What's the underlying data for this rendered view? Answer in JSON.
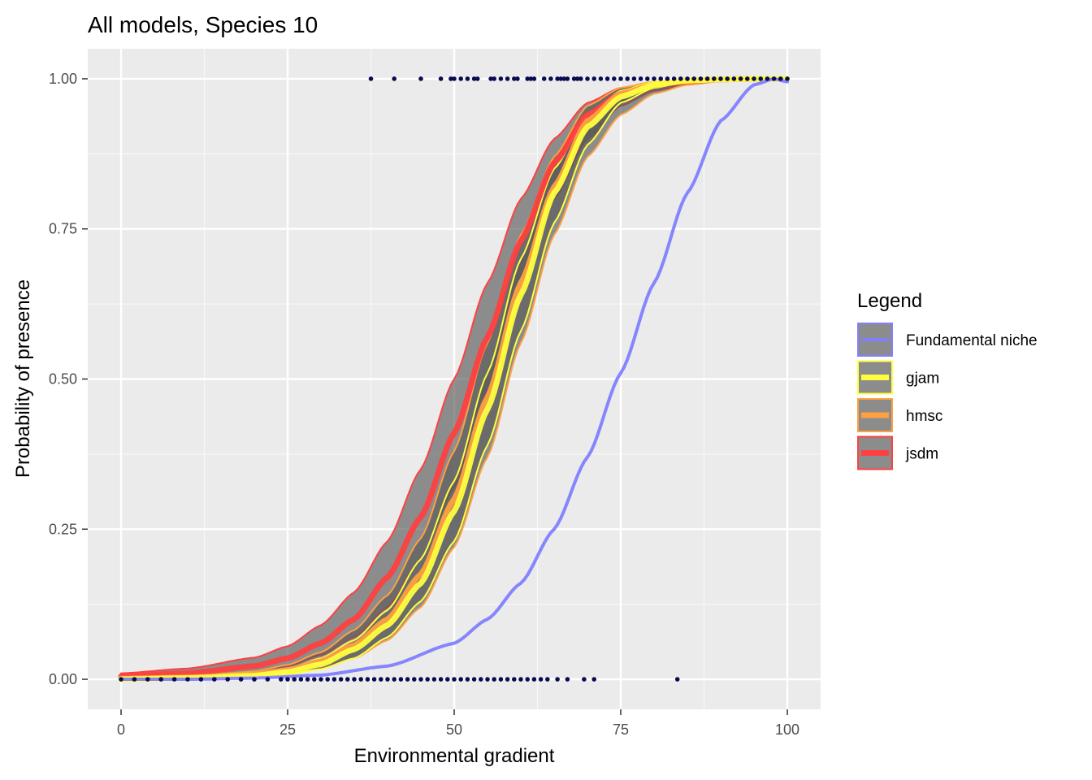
{
  "chart_data": {
    "type": "line",
    "title": "All models, Species 10",
    "xlabel": "Environmental gradient",
    "ylabel": "Probability of presence",
    "xlim": [
      -5,
      105
    ],
    "ylim": [
      -0.05,
      1.05
    ],
    "x_ticks": [
      0,
      25,
      50,
      75,
      100
    ],
    "x_tick_labels": [
      "0",
      "25",
      "50",
      "75",
      "100"
    ],
    "y_ticks": [
      0,
      0.25,
      0.5,
      0.75,
      1.0
    ],
    "y_tick_labels": [
      "0.00",
      "0.25",
      "0.50",
      "0.75",
      "1.00"
    ],
    "grid": true,
    "legend": {
      "title": "Legend",
      "placement": "right",
      "entries": [
        "Fundamental niche",
        "gjam",
        "hmsc",
        "jsdm"
      ]
    },
    "series": [
      {
        "name": "Fundamental niche",
        "color": "#8080FF",
        "ribbon": false,
        "x": [
          0,
          10,
          20,
          30,
          40,
          50,
          55,
          60,
          65,
          70,
          75,
          80,
          85,
          90,
          95,
          98,
          100
        ],
        "y": [
          0.0,
          0.0,
          0.002,
          0.007,
          0.022,
          0.06,
          0.1,
          0.16,
          0.25,
          0.37,
          0.51,
          0.66,
          0.81,
          0.93,
          0.99,
          1.0,
          0.995
        ]
      },
      {
        "name": "gjam",
        "color": "#FFFF40",
        "ribbon": true,
        "x": [
          0,
          10,
          20,
          25,
          30,
          35,
          40,
          45,
          50,
          55,
          60,
          65,
          70,
          75,
          80,
          85,
          90,
          95,
          100
        ],
        "y": [
          0.0,
          0.002,
          0.006,
          0.012,
          0.025,
          0.05,
          0.09,
          0.16,
          0.28,
          0.45,
          0.64,
          0.81,
          0.92,
          0.97,
          0.99,
          0.997,
          0.999,
          1.0,
          1.0
        ],
        "lower": [
          0.0,
          0.001,
          0.004,
          0.008,
          0.017,
          0.035,
          0.07,
          0.13,
          0.23,
          0.39,
          0.58,
          0.76,
          0.89,
          0.96,
          0.985,
          0.995,
          0.998,
          0.999,
          1.0
        ],
        "upper": [
          0.001,
          0.003,
          0.009,
          0.017,
          0.035,
          0.065,
          0.115,
          0.2,
          0.33,
          0.51,
          0.7,
          0.85,
          0.94,
          0.98,
          0.995,
          0.999,
          1.0,
          1.0,
          1.0
        ]
      },
      {
        "name": "hmsc",
        "color": "#FFA040",
        "ribbon": true,
        "x": [
          0,
          10,
          20,
          25,
          30,
          35,
          40,
          45,
          50,
          55,
          60,
          65,
          70,
          75,
          80,
          85,
          90,
          95,
          100
        ],
        "y": [
          0.001,
          0.003,
          0.008,
          0.015,
          0.03,
          0.057,
          0.1,
          0.175,
          0.3,
          0.47,
          0.66,
          0.82,
          0.93,
          0.975,
          0.99,
          0.997,
          0.999,
          1.0,
          1.0
        ],
        "lower": [
          0.0,
          0.001,
          0.004,
          0.009,
          0.018,
          0.035,
          0.065,
          0.12,
          0.22,
          0.37,
          0.56,
          0.74,
          0.87,
          0.94,
          0.975,
          0.99,
          0.996,
          0.999,
          1.0
        ],
        "upper": [
          0.002,
          0.005,
          0.013,
          0.024,
          0.045,
          0.082,
          0.14,
          0.235,
          0.38,
          0.56,
          0.74,
          0.87,
          0.955,
          0.985,
          0.995,
          0.999,
          1.0,
          1.0,
          1.0
        ]
      },
      {
        "name": "jsdm",
        "color": "#FF4040",
        "ribbon": true,
        "x": [
          0,
          10,
          20,
          25,
          30,
          35,
          40,
          45,
          50,
          55,
          60,
          65,
          70,
          75,
          80,
          85,
          90,
          95,
          100
        ],
        "y": [
          0.005,
          0.01,
          0.022,
          0.035,
          0.06,
          0.1,
          0.17,
          0.27,
          0.41,
          0.57,
          0.73,
          0.86,
          0.94,
          0.975,
          0.99,
          0.996,
          0.999,
          1.0,
          1.0
        ],
        "lower": [
          0.002,
          0.005,
          0.013,
          0.022,
          0.04,
          0.07,
          0.12,
          0.2,
          0.32,
          0.48,
          0.65,
          0.8,
          0.9,
          0.955,
          0.98,
          0.99,
          0.996,
          0.999,
          1.0
        ],
        "upper": [
          0.01,
          0.018,
          0.036,
          0.055,
          0.09,
          0.145,
          0.23,
          0.35,
          0.5,
          0.66,
          0.8,
          0.9,
          0.96,
          0.985,
          0.995,
          0.999,
          1.0,
          1.0,
          1.0
        ]
      }
    ],
    "observations": {
      "color": "#0A0A50",
      "presence_x": [
        37.5,
        41,
        45,
        48,
        49.5,
        50,
        51,
        52,
        53,
        53.5,
        55.5,
        56,
        57,
        58,
        59,
        59.5,
        61,
        61.5,
        62,
        63.5,
        64.5,
        65.5,
        66,
        66.5,
        67,
        68,
        68.5,
        69,
        70,
        71,
        72,
        73,
        74,
        75,
        76,
        77,
        78,
        79,
        80,
        81,
        82,
        83,
        84,
        85,
        86,
        87,
        88,
        89,
        90,
        91,
        92,
        93,
        94,
        95,
        96,
        97,
        98,
        99,
        100
      ],
      "absence_x": [
        0,
        2,
        4,
        6,
        8,
        10,
        12,
        14,
        16,
        18,
        20,
        22,
        24,
        25,
        26,
        27,
        28,
        29,
        30,
        31,
        32,
        33,
        34,
        35,
        36,
        37,
        38,
        39,
        40,
        41,
        42,
        43,
        44,
        45,
        46,
        47,
        48,
        49,
        50,
        51,
        52,
        53,
        54,
        55,
        56,
        57,
        58,
        59,
        60,
        61,
        62,
        63,
        64,
        65.5,
        67,
        69.5,
        71,
        83.5
      ]
    }
  }
}
